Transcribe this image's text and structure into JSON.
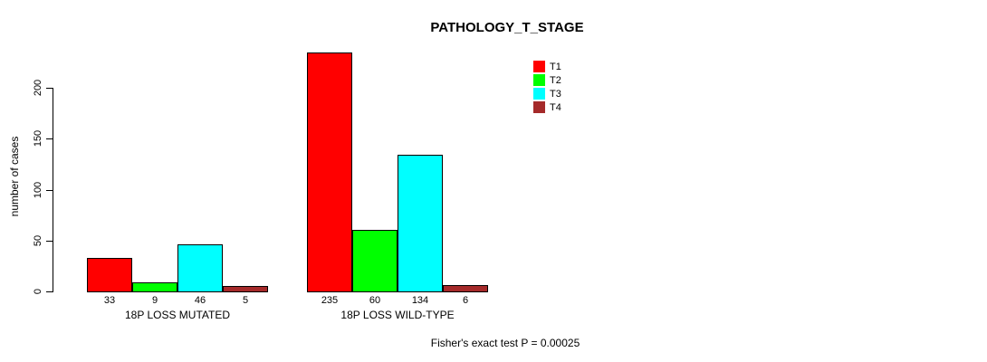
{
  "chart_data": {
    "type": "bar",
    "title": "PATHOLOGY_T_STAGE",
    "ylabel": "number of cases",
    "xlabel": "",
    "categories": [
      "18P LOSS MUTATED",
      "18P LOSS WILD-TYPE"
    ],
    "series": [
      {
        "name": "T1",
        "color": "#FF0000",
        "values": [
          33,
          235
        ]
      },
      {
        "name": "T2",
        "color": "#00FF00",
        "values": [
          9,
          60
        ]
      },
      {
        "name": "T3",
        "color": "#00FFFF",
        "values": [
          46,
          134
        ]
      },
      {
        "name": "T4",
        "color": "#A52A2A",
        "values": [
          5,
          6
        ]
      }
    ],
    "yticks": [
      0,
      50,
      100,
      150,
      200
    ],
    "ylim": [
      0,
      237
    ],
    "grid": false,
    "show_value_labels": true,
    "legend_position": "top-right",
    "annotation": "Fisher's exact test P = 0.00025"
  }
}
